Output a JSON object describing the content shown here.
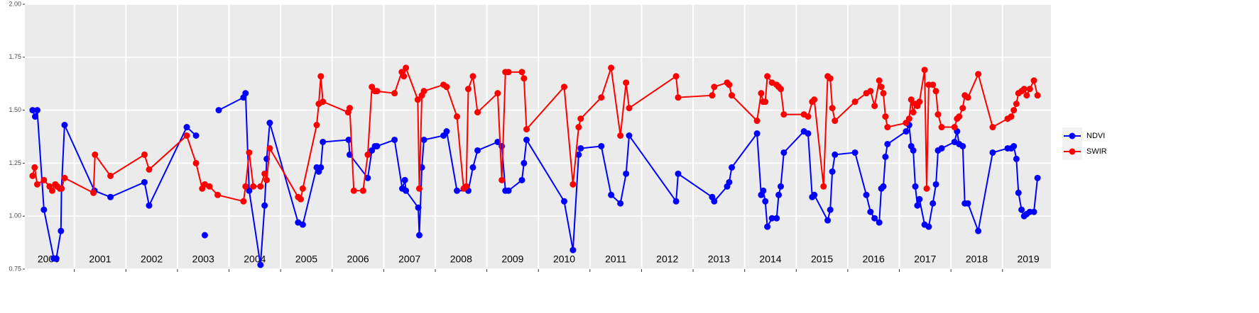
{
  "chart_data": {
    "type": "line",
    "xlim": [
      2000.04,
      2019.94
    ],
    "ylim": [
      0.75,
      2.0
    ],
    "yticks": [
      {
        "value": 0.75,
        "label": "0.75"
      },
      {
        "value": 1.0,
        "label": "1.00"
      },
      {
        "value": 1.25,
        "label": "1.25"
      },
      {
        "value": 1.5,
        "label": "1.50"
      },
      {
        "value": 1.75,
        "label": "1.75"
      },
      {
        "value": 2.0,
        "label": "2.00"
      }
    ],
    "xgrid": [
      2001,
      2002,
      2003,
      2004,
      2005,
      2006,
      2007,
      2008,
      2009,
      2010,
      2011,
      2012,
      2013,
      2014,
      2015,
      2016,
      2017,
      2018,
      2019
    ],
    "year_labels": [
      {
        "value": 2000.5,
        "label": "2000"
      },
      {
        "value": 2001.5,
        "label": "2001"
      },
      {
        "value": 2002.5,
        "label": "2002"
      },
      {
        "value": 2003.5,
        "label": "2003"
      },
      {
        "value": 2004.5,
        "label": "2004"
      },
      {
        "value": 2005.5,
        "label": "2005"
      },
      {
        "value": 2006.5,
        "label": "2006"
      },
      {
        "value": 2007.5,
        "label": "2007"
      },
      {
        "value": 2008.5,
        "label": "2008"
      },
      {
        "value": 2009.5,
        "label": "2009"
      },
      {
        "value": 2010.5,
        "label": "2010"
      },
      {
        "value": 2011.5,
        "label": "2011"
      },
      {
        "value": 2012.5,
        "label": "2012"
      },
      {
        "value": 2013.5,
        "label": "2013"
      },
      {
        "value": 2014.5,
        "label": "2014"
      },
      {
        "value": 2015.5,
        "label": "2015"
      },
      {
        "value": 2016.5,
        "label": "2016"
      },
      {
        "value": 2017.5,
        "label": "2017"
      },
      {
        "value": 2018.5,
        "label": "2018"
      },
      {
        "value": 2019.5,
        "label": "2019"
      }
    ],
    "grid": true,
    "legend": "right",
    "series": [
      {
        "name": "NDVI",
        "color": "#0000ff",
        "x": [
          2000.19,
          2000.24,
          2000.28,
          2000.41,
          2000.6,
          2000.65,
          2000.74,
          2000.75,
          2000.81,
          2001.39,
          2001.7,
          2002.36,
          2002.45,
          2003.18,
          2003.36,
          null,
          2003.53,
          null,
          2003.8,
          2004.28,
          2004.32,
          2004.39,
          2004.61,
          2004.69,
          2004.73,
          2004.79,
          2005.34,
          2005.43,
          2005.7,
          2005.74,
          2005.78,
          2005.82,
          2006.32,
          2006.34,
          2006.69,
          2006.77,
          2006.83,
          2006.87,
          2007.21,
          2007.36,
          2007.41,
          2007.43,
          2007.67,
          2007.69,
          2007.74,
          2007.78,
          2008.16,
          2008.22,
          2008.42,
          2008.64,
          2008.73,
          2008.82,
          2009.21,
          2009.29,
          2009.36,
          2009.42,
          2009.68,
          2009.72,
          2009.77,
          2010.5,
          2010.67,
          2010.78,
          2010.82,
          2011.22,
          2011.41,
          2011.59,
          2011.7,
          2011.76,
          2012.67,
          2012.71,
          2013.37,
          2013.41,
          2013.66,
          2013.7,
          2013.75,
          2014.24,
          2014.32,
          2014.36,
          2014.4,
          2014.44,
          2014.53,
          2014.62,
          2014.66,
          2014.7,
          2014.76,
          2015.15,
          2015.23,
          2015.31,
          2015.35,
          2015.61,
          2015.66,
          2015.7,
          2015.75,
          2016.14,
          2016.36,
          2016.44,
          2016.52,
          2016.61,
          2016.65,
          2016.69,
          2016.73,
          2016.77,
          2017.13,
          2017.19,
          2017.23,
          2017.27,
          2017.31,
          2017.35,
          2017.39,
          2017.49,
          2017.57,
          2017.65,
          2017.71,
          2017.75,
          2017.82,
          2018.07,
          2018.12,
          2018.16,
          2018.23,
          2018.27,
          2018.33,
          2018.53,
          2018.81,
          2019.1,
          2019.17,
          2019.22,
          2019.27,
          2019.31,
          2019.37,
          2019.42,
          2019.47,
          2019.53,
          2019.61,
          2019.68
        ],
        "values": [
          1.5,
          1.47,
          1.5,
          1.03,
          0.8,
          0.8,
          0.93,
          1.13,
          1.43,
          1.12,
          1.09,
          1.16,
          1.05,
          1.42,
          1.38,
          null,
          0.91,
          null,
          1.5,
          1.56,
          1.58,
          1.12,
          0.77,
          1.05,
          1.27,
          1.44,
          0.97,
          0.96,
          1.23,
          1.21,
          1.23,
          1.35,
          1.36,
          1.29,
          1.18,
          1.31,
          1.33,
          1.33,
          1.36,
          1.13,
          1.17,
          1.12,
          1.04,
          0.91,
          1.23,
          1.36,
          1.38,
          1.4,
          1.12,
          1.12,
          1.23,
          1.31,
          1.35,
          1.33,
          1.12,
          1.12,
          1.17,
          1.25,
          1.36,
          1.07,
          0.84,
          1.29,
          1.32,
          1.33,
          1.1,
          1.06,
          1.2,
          1.38,
          1.07,
          1.2,
          1.09,
          1.07,
          1.14,
          1.16,
          1.23,
          1.39,
          1.1,
          1.12,
          1.07,
          0.95,
          0.99,
          0.99,
          1.1,
          1.14,
          1.3,
          1.4,
          1.39,
          1.09,
          1.1,
          0.98,
          1.03,
          1.21,
          1.29,
          1.3,
          1.1,
          1.02,
          0.99,
          0.97,
          1.13,
          1.14,
          1.28,
          1.34,
          1.4,
          1.43,
          1.33,
          1.31,
          1.14,
          1.05,
          1.08,
          0.96,
          0.95,
          1.06,
          1.15,
          1.31,
          1.32,
          1.35,
          1.4,
          1.34,
          1.33,
          1.06,
          1.06,
          0.93,
          1.3,
          1.32,
          1.32,
          1.33,
          1.27,
          1.11,
          1.03,
          1.0,
          1.01,
          1.02,
          1.02,
          1.18
        ]
      },
      {
        "name": "SWIR",
        "color": "#ff0000",
        "x": [
          2000.19,
          2000.23,
          2000.28,
          2000.41,
          2000.52,
          2000.57,
          2000.63,
          2000.67,
          2000.72,
          2000.75,
          2000.81,
          2001.37,
          2001.4,
          2001.7,
          2002.36,
          2002.45,
          2003.18,
          2003.36,
          2003.48,
          2003.53,
          2003.62,
          2003.78,
          2004.28,
          2004.32,
          2004.39,
          2004.47,
          2004.61,
          2004.69,
          2004.73,
          2004.79,
          2005.34,
          2005.39,
          2005.43,
          2005.7,
          2005.74,
          2005.78,
          2005.82,
          2006.31,
          2006.34,
          2006.42,
          2006.6,
          2006.69,
          2006.77,
          2006.83,
          2006.87,
          2007.21,
          2007.35,
          2007.39,
          2007.43,
          2007.66,
          2007.69,
          2007.74,
          2007.78,
          2008.16,
          2008.22,
          2008.42,
          2008.55,
          2008.6,
          2008.64,
          2008.73,
          2008.82,
          2009.21,
          2009.29,
          2009.36,
          2009.42,
          2009.68,
          2009.72,
          2009.77,
          2010.5,
          2010.67,
          2010.78,
          2010.82,
          2011.22,
          2011.41,
          2011.59,
          2011.7,
          2011.76,
          2012.67,
          2012.71,
          2013.37,
          2013.41,
          2013.66,
          2013.7,
          2013.75,
          2014.24,
          2014.32,
          2014.36,
          2014.4,
          2014.44,
          2014.53,
          2014.62,
          2014.66,
          2014.7,
          2014.76,
          2015.15,
          2015.23,
          2015.31,
          2015.35,
          2015.53,
          2015.61,
          2015.66,
          2015.7,
          2015.75,
          2016.14,
          2016.36,
          2016.44,
          2016.52,
          2016.61,
          2016.65,
          2016.69,
          2016.73,
          2016.77,
          2017.13,
          2017.19,
          2017.23,
          2017.27,
          2017.31,
          2017.35,
          2017.39,
          2017.49,
          2017.53,
          2017.57,
          2017.65,
          2017.71,
          2017.75,
          2017.82,
          2018.07,
          2018.12,
          2018.16,
          2018.23,
          2018.27,
          2018.33,
          2018.53,
          2018.81,
          2019.1,
          2019.17,
          2019.22,
          2019.27,
          2019.31,
          2019.37,
          2019.42,
          2019.47,
          2019.53,
          2019.61,
          2019.68
        ],
        "values": [
          1.19,
          1.23,
          1.15,
          1.17,
          1.14,
          1.12,
          1.15,
          1.14,
          1.13,
          1.13,
          1.18,
          1.11,
          1.29,
          1.19,
          1.29,
          1.22,
          1.38,
          1.25,
          1.13,
          1.15,
          1.14,
          1.1,
          1.07,
          1.14,
          1.3,
          1.14,
          1.14,
          1.2,
          1.17,
          1.32,
          1.09,
          1.08,
          1.13,
          1.43,
          1.53,
          1.66,
          1.54,
          1.49,
          1.51,
          1.12,
          1.12,
          1.29,
          1.61,
          1.59,
          1.59,
          1.58,
          1.68,
          1.66,
          1.7,
          1.55,
          1.13,
          1.57,
          1.59,
          1.62,
          1.61,
          1.47,
          1.13,
          1.14,
          1.6,
          1.66,
          1.49,
          1.58,
          1.17,
          1.68,
          1.68,
          1.68,
          1.65,
          1.41,
          1.61,
          1.15,
          1.42,
          1.46,
          1.56,
          1.7,
          1.38,
          1.63,
          1.51,
          1.66,
          1.56,
          1.57,
          1.61,
          1.63,
          1.62,
          1.57,
          1.45,
          1.58,
          1.54,
          1.54,
          1.66,
          1.63,
          1.62,
          1.61,
          1.6,
          1.48,
          1.48,
          1.47,
          1.54,
          1.55,
          1.14,
          1.66,
          1.65,
          1.51,
          1.45,
          1.54,
          1.58,
          1.59,
          1.52,
          1.64,
          1.61,
          1.58,
          1.47,
          1.42,
          1.44,
          1.46,
          1.55,
          1.49,
          1.53,
          1.52,
          1.54,
          1.69,
          1.13,
          1.62,
          1.62,
          1.59,
          1.48,
          1.42,
          1.42,
          1.46,
          1.47,
          1.51,
          1.57,
          1.56,
          1.67,
          1.42,
          1.46,
          1.47,
          1.5,
          1.53,
          1.58,
          1.59,
          1.6,
          1.57,
          1.6,
          1.64,
          1.57
        ]
      }
    ]
  }
}
